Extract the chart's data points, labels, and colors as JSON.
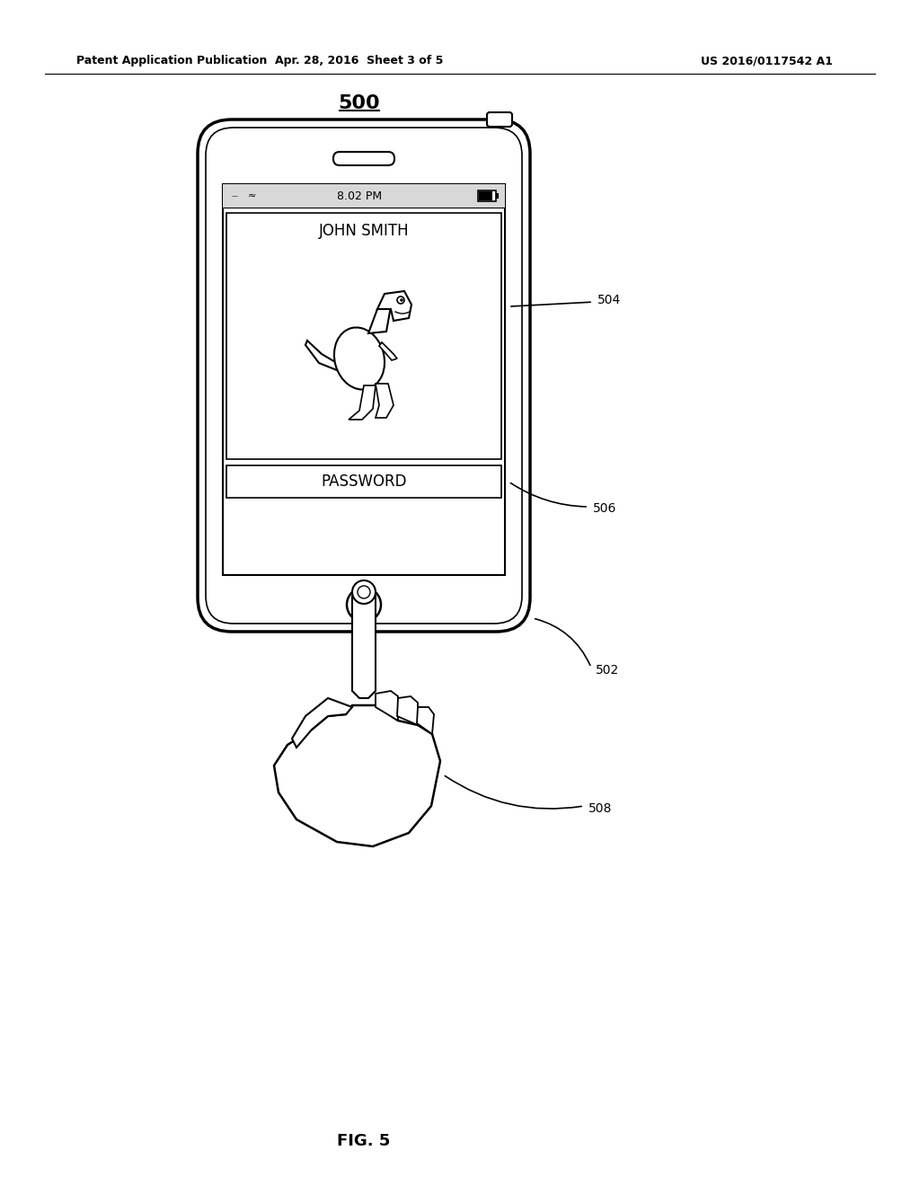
{
  "bg_color": "#ffffff",
  "text_color": "#000000",
  "header_left": "Patent Application Publication",
  "header_mid": "Apr. 28, 2016  Sheet 3 of 5",
  "header_right": "US 2016/0117542 A1",
  "figure_label": "500",
  "fig_caption": "FIG. 5",
  "label_502": "502",
  "label_504": "504",
  "label_506": "506",
  "label_508": "508",
  "time_text": "8.02 PM",
  "name_text": "JOHN SMITH",
  "password_text": "PASSWORD"
}
